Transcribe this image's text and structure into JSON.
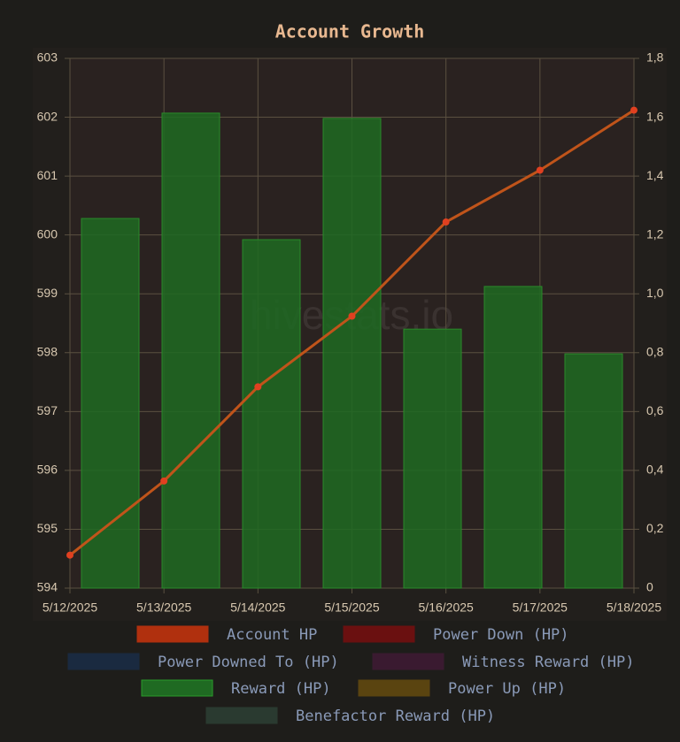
{
  "chart_data": {
    "type": "bar-line",
    "title": "Account Growth",
    "watermark": "hivestats.io",
    "categories": [
      "5/12/2025",
      "5/13/2025",
      "5/14/2025",
      "5/15/2025",
      "5/16/2025",
      "5/17/2025",
      "5/18/2025"
    ],
    "ylim": [
      594,
      603
    ],
    "yticks": [
      594,
      595,
      596,
      597,
      598,
      599,
      600,
      601,
      602,
      603
    ],
    "y2lim": [
      0,
      1.8
    ],
    "y2ticks": [
      0,
      {
        "value": 0.2,
        "label": "0,2"
      },
      {
        "value": 0.4,
        "label": "0,4"
      },
      {
        "value": 0.6,
        "label": "0,6"
      },
      {
        "value": 0.8,
        "label": "0,8"
      },
      {
        "value": 1.0,
        "label": "1,0"
      },
      {
        "value": 1.2,
        "label": "1,2"
      },
      {
        "value": 1.4,
        "label": "1,4"
      },
      {
        "value": 1.6,
        "label": "1,6"
      },
      {
        "value": 1.8,
        "label": "1,8"
      }
    ],
    "grid": true,
    "series": [
      {
        "name": "Account HP",
        "type": "line",
        "color": "#b0300e",
        "values": [
          594.56,
          595.82,
          597.42,
          598.62,
          600.22,
          601.1,
          602.12
        ]
      },
      {
        "name": "Power Down (HP)",
        "type": "bar",
        "axis": "y2",
        "color": "#6a1010",
        "values": [
          null,
          null,
          null,
          null,
          null,
          null,
          null
        ]
      },
      {
        "name": "Power Downed To (HP)",
        "type": "bar",
        "axis": "y2",
        "color": "#1a2a40",
        "values": [
          null,
          null,
          null,
          null,
          null,
          null,
          null
        ]
      },
      {
        "name": "Witness Reward (HP)",
        "type": "bar",
        "axis": "y2",
        "color": "#3a1a30",
        "values": [
          null,
          null,
          null,
          null,
          null,
          null,
          null
        ]
      },
      {
        "name": "Reward (HP)",
        "type": "bar",
        "axis": "y2",
        "color": "#1f6a22",
        "values": [
          1.256,
          1.614,
          1.184,
          1.596,
          0.88,
          1.025,
          0.796
        ]
      },
      {
        "name": "Power Up (HP)",
        "type": "bar",
        "axis": "y2",
        "color": "#5a4410",
        "values": [
          null,
          null,
          null,
          null,
          null,
          null,
          null
        ]
      },
      {
        "name": "Benefactor Reward (HP)",
        "type": "bar",
        "axis": "y2",
        "color": "#2a3a30",
        "values": [
          null,
          null,
          null,
          null,
          null,
          null,
          null
        ]
      }
    ]
  }
}
